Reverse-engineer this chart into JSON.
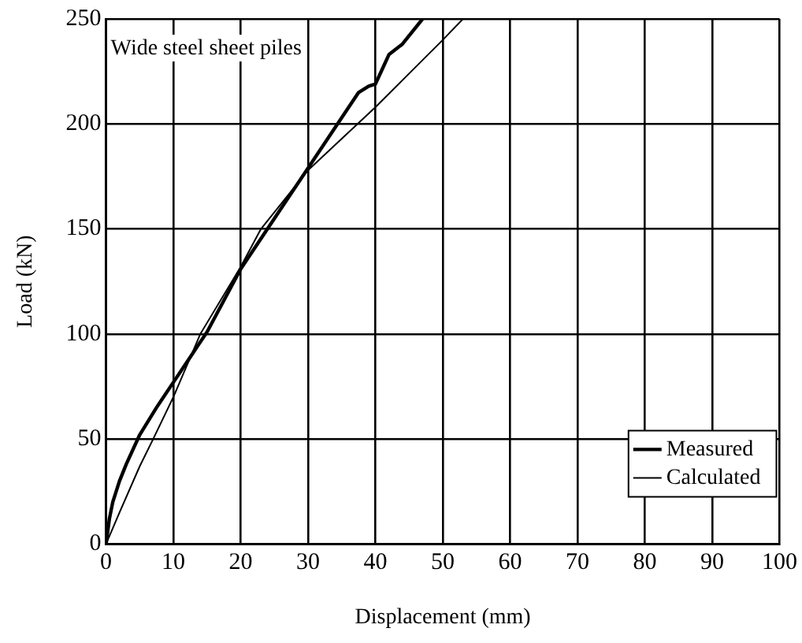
{
  "chart_data": {
    "type": "line",
    "xlabel": "Displacement (mm)",
    "ylabel": "Load (kN)",
    "annotations": [
      "Wide steel sheet piles"
    ],
    "xlim": [
      0,
      100
    ],
    "ylim": [
      0,
      250
    ],
    "xticks": [
      0,
      10,
      20,
      30,
      40,
      50,
      60,
      70,
      80,
      90,
      100
    ],
    "yticks": [
      0,
      50,
      100,
      150,
      200,
      250
    ],
    "grid": true,
    "legend": "bottom right",
    "marker": "none",
    "series": [
      {
        "name": "Measured",
        "color": "#000000",
        "x": [
          0,
          0.5,
          1,
          2,
          3,
          5,
          7.5,
          10,
          12.5,
          15,
          20,
          25,
          30,
          35,
          37.5,
          39,
          40,
          41,
          42,
          44,
          47
        ],
        "values": [
          0,
          12,
          20,
          30,
          38,
          52,
          65,
          77,
          89,
          101,
          131,
          155,
          179,
          203,
          215,
          218,
          219,
          226,
          233,
          238,
          250
        ]
      },
      {
        "name": "Calculated",
        "color": "#000000",
        "x": [
          0,
          2,
          5,
          7,
          10,
          14,
          20,
          23,
          30,
          40,
          50,
          53
        ],
        "values": [
          0,
          15,
          37,
          50,
          70,
          100,
          132,
          150,
          178,
          208,
          240,
          250
        ]
      }
    ]
  }
}
